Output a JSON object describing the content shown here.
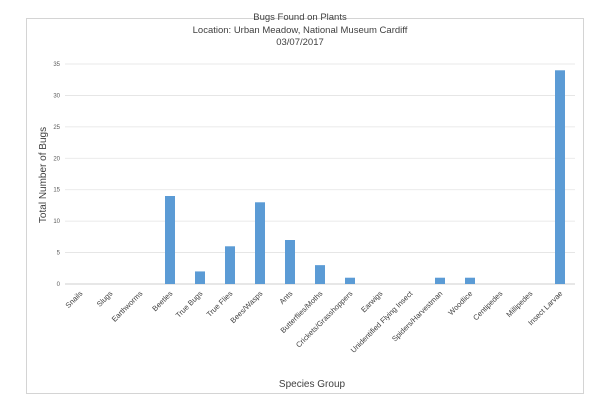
{
  "chart_data": {
    "type": "bar",
    "title": "Bugs Found on Plants",
    "subtitle_lines": [
      "Location: Urban Meadow, National Museum Cardiff",
      "03/07/2017"
    ],
    "xlabel": "Species Group",
    "ylabel": "Total Number of Bugs",
    "ylim": [
      0,
      35
    ],
    "yticks": [
      0,
      5,
      10,
      15,
      20,
      25,
      30,
      35
    ],
    "grid": true,
    "legend": "none",
    "bar_color": "#5b9bd5",
    "categories": [
      "Snails",
      "Slugs",
      "Earthworms",
      "Beetles",
      "True Bugs",
      "True Flies",
      "Bees/Wasps",
      "Ants",
      "Butterflies/Moths",
      "Crickets/Grasshoppers",
      "Earwigs",
      "Unidentified Flying Insect",
      "Spiders/Harvestman",
      "Woodlice",
      "Centipedes",
      "Millipedes",
      "Insect Larvae"
    ],
    "values": [
      0,
      0,
      0,
      14,
      2,
      6,
      13,
      7,
      3,
      1,
      0,
      0,
      1,
      1,
      0,
      0,
      34
    ]
  }
}
